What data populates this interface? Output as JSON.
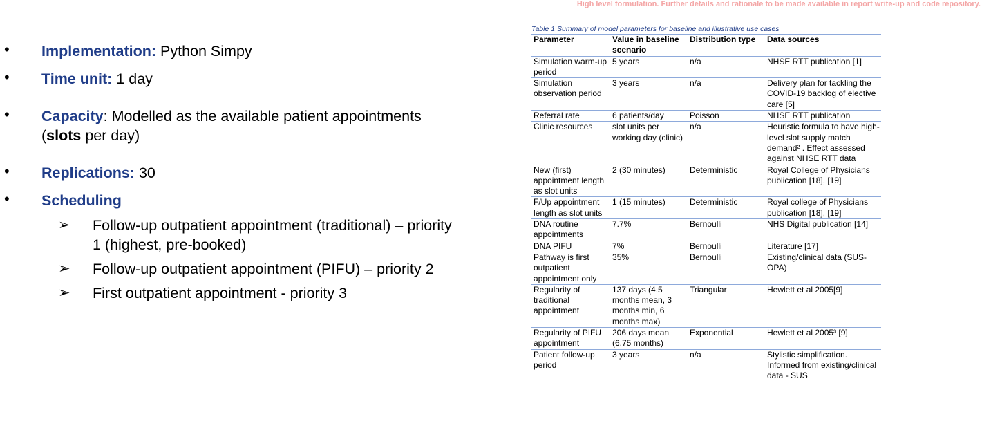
{
  "notice": "High level formulation. Further details and rationale to be made available in report write-up and code repository.",
  "bullets": [
    {
      "key": "Implementation:",
      "text": " Python Simpy"
    },
    {
      "key": "Time unit:",
      "text": " 1 day"
    },
    {
      "key": "Capacity",
      "text_a": ": Modelled as the available patient appointments",
      "text_b_open": "(",
      "text_b_bold": "slots",
      "text_b_rest": " per day)"
    },
    {
      "key": "Replications:",
      "text": " 30"
    },
    {
      "key": "Scheduling"
    }
  ],
  "scheduling_items": [
    {
      "line1": "Follow-up outpatient appointment (traditional) – priority",
      "line2": "1 (highest, pre-booked)"
    },
    {
      "line1": "Follow-up outpatient appointment (PIFU) – priority 2"
    },
    {
      "line1": "First outpatient appointment -  priority 3"
    }
  ],
  "table": {
    "caption": "Table 1 Summary of model parameters for baseline and illustrative use cases",
    "headers": [
      "Parameter",
      "Value in baseline scenario",
      "Distribution type",
      "Data sources"
    ],
    "rows": [
      [
        "Simulation warm-up period",
        "5 years",
        "n/a",
        "NHSE RTT publication [1]"
      ],
      [
        "Simulation observation period",
        "3 years",
        "n/a",
        "Delivery plan for tackling the COVID-19 backlog of elective care [5]"
      ],
      [
        "Referral rate",
        "6 patients/day",
        "Poisson",
        "NHSE RTT publication"
      ],
      [
        "Clinic resources",
        " slot units per working day (clinic)",
        "n/a",
        "Heuristic formula to have high-level slot supply match demand² . Effect assessed against NHSE RTT data"
      ],
      [
        "New (first) appointment length as slot units",
        "2 (30 minutes)",
        "Deterministic",
        "Royal College of Physicians publication [18], [19]"
      ],
      [
        "F/Up appointment length as slot units",
        "1 (15 minutes)",
        "Deterministic",
        "Royal college of Physicians publication [18], [19]"
      ],
      [
        "DNA routine appointments",
        "7.7%",
        "Bernoulli",
        "NHS Digital publication [14]"
      ],
      [
        "DNA PIFU",
        "7%",
        "Bernoulli",
        "Literature [17]"
      ],
      [
        "Pathway is first outpatient appointment only",
        "35%",
        "Bernoulli",
        "Existing/clinical data (SUS-OPA)"
      ],
      [
        "Regularity of traditional appointment",
        "137 days (4.5 months mean, 3 months min, 6 months max)",
        " Triangular",
        "Hewlett et al 2005[9]"
      ],
      [
        "Regularity of PIFU appointment",
        "206 days mean (6.75 months)",
        "Exponential",
        "Hewlett et al 2005³ [9]"
      ],
      [
        "Patient follow-up period",
        "3 years",
        "n/a",
        "Stylistic simplification. Informed from existing/clinical data - SUS"
      ]
    ]
  }
}
